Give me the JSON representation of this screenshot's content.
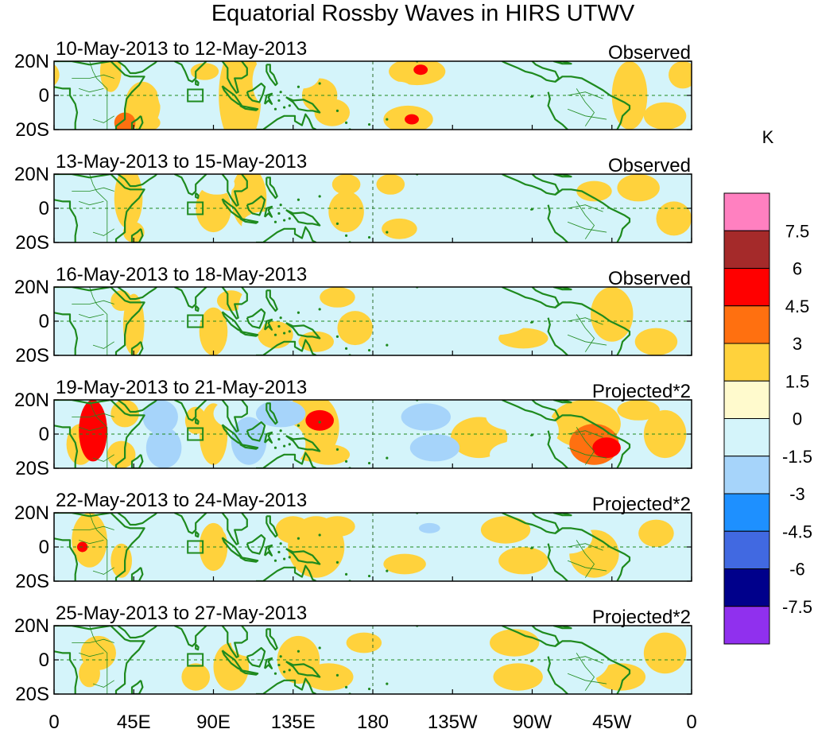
{
  "chart_data": {
    "type": "heatmap",
    "title": "Equatorial Rossby Waves in HIRS UTWV",
    "x_tick_labels": [
      "0",
      "45E",
      "90E",
      "135E",
      "180",
      "135W",
      "90W",
      "45W",
      "0"
    ],
    "y_tick_labels": [
      "20N",
      "0",
      "20S"
    ],
    "xlim_degrees_east": [
      0,
      360
    ],
    "ylim_degrees_lat": [
      -20,
      20
    ],
    "colorbar": {
      "unit": "K",
      "tick_labels": [
        "7.5",
        "6",
        "4.5",
        "3",
        "1.5",
        "0",
        "-1.5",
        "-3",
        "-4.5",
        "-6",
        "-7.5"
      ],
      "colors": [
        "#ff80c0",
        "#a52a2a",
        "#ff0000",
        "#ff7010",
        "#ffd23c",
        "#fffacd",
        "#d4f4fa",
        "#a6d4fa",
        "#1e90ff",
        "#4169e1",
        "#00008b",
        "#9030ee"
      ]
    },
    "panels": [
      {
        "dates": "10-May-2013 to 12-May-2013",
        "label": "Observed",
        "blobs": [
          [
            32,
            14,
            6,
            12,
            1
          ],
          [
            50,
            -6,
            10,
            14,
            1
          ],
          [
            40,
            -16,
            6,
            6,
            2
          ],
          [
            52,
            -16,
            8,
            5,
            1
          ],
          [
            85,
            14,
            8,
            5,
            1
          ],
          [
            68,
            6,
            10,
            20,
            -1
          ],
          [
            66,
            -6,
            6,
            14,
            -1
          ],
          [
            105,
            0,
            12,
            30,
            1
          ],
          [
            120,
            8,
            8,
            14,
            -1
          ],
          [
            140,
            12,
            10,
            8,
            -1
          ],
          [
            150,
            0,
            10,
            10,
            1
          ],
          [
            157,
            -10,
            10,
            8,
            1
          ],
          [
            175,
            10,
            8,
            10,
            -1
          ],
          [
            205,
            14,
            16,
            8,
            1
          ],
          [
            207,
            15,
            4,
            3,
            3
          ],
          [
            200,
            -14,
            14,
            8,
            1
          ],
          [
            202,
            -14,
            4,
            3,
            3
          ],
          [
            195,
            2,
            8,
            6,
            -1
          ],
          [
            220,
            0,
            10,
            8,
            -1
          ],
          [
            255,
            -4,
            20,
            14,
            -1
          ],
          [
            250,
            12,
            14,
            8,
            -1
          ],
          [
            285,
            -10,
            10,
            8,
            -1
          ],
          [
            325,
            0,
            10,
            20,
            1
          ],
          [
            345,
            -12,
            12,
            8,
            1
          ],
          [
            355,
            12,
            8,
            8,
            1
          ]
        ]
      },
      {
        "dates": "13-May-2013 to 15-May-2013",
        "label": "Observed",
        "blobs": [
          [
            42,
            6,
            8,
            18,
            1
          ],
          [
            45,
            -14,
            6,
            6,
            1
          ],
          [
            60,
            0,
            10,
            20,
            -1
          ],
          [
            75,
            -16,
            12,
            4,
            -1
          ],
          [
            92,
            14,
            10,
            6,
            -1
          ],
          [
            90,
            0,
            10,
            14,
            1
          ],
          [
            110,
            6,
            10,
            18,
            1
          ],
          [
            118,
            -10,
            12,
            8,
            -1
          ],
          [
            130,
            10,
            10,
            14,
            -1
          ],
          [
            145,
            -6,
            10,
            10,
            -1
          ],
          [
            165,
            -2,
            10,
            12,
            1
          ],
          [
            165,
            14,
            8,
            6,
            1
          ],
          [
            190,
            14,
            8,
            6,
            1
          ],
          [
            195,
            -12,
            10,
            6,
            1
          ],
          [
            220,
            4,
            10,
            8,
            -1
          ],
          [
            260,
            -8,
            20,
            10,
            -1
          ],
          [
            280,
            8,
            14,
            8,
            -1
          ],
          [
            305,
            10,
            10,
            6,
            1
          ],
          [
            330,
            12,
            12,
            8,
            1
          ],
          [
            350,
            -6,
            10,
            10,
            1
          ]
        ]
      },
      {
        "dates": "16-May-2013 to 18-May-2013",
        "label": "Observed",
        "blobs": [
          [
            38,
            12,
            6,
            6,
            1
          ],
          [
            45,
            -2,
            6,
            18,
            1
          ],
          [
            62,
            6,
            10,
            18,
            -1
          ],
          [
            70,
            -10,
            12,
            8,
            -1
          ],
          [
            90,
            -6,
            8,
            14,
            1
          ],
          [
            100,
            12,
            8,
            6,
            1
          ],
          [
            112,
            6,
            8,
            14,
            -1
          ],
          [
            125,
            -8,
            10,
            8,
            1
          ],
          [
            160,
            14,
            10,
            6,
            1
          ],
          [
            148,
            -12,
            10,
            6,
            1
          ],
          [
            170,
            -4,
            10,
            10,
            1
          ],
          [
            210,
            12,
            10,
            6,
            -1
          ],
          [
            190,
            -12,
            10,
            6,
            -1
          ],
          [
            250,
            4,
            20,
            12,
            -1
          ],
          [
            265,
            -10,
            14,
            6,
            1
          ],
          [
            290,
            14,
            10,
            6,
            -1
          ],
          [
            315,
            4,
            12,
            16,
            1
          ],
          [
            340,
            -12,
            12,
            8,
            1
          ]
        ]
      },
      {
        "dates": "19-May-2013 to 21-May-2013",
        "label": "Projected*2",
        "blobs": [
          [
            22,
            2,
            8,
            18,
            3
          ],
          [
            15,
            -6,
            8,
            12,
            1
          ],
          [
            40,
            12,
            8,
            8,
            1
          ],
          [
            38,
            -12,
            8,
            8,
            1
          ],
          [
            60,
            10,
            10,
            10,
            -2
          ],
          [
            62,
            -8,
            10,
            12,
            -2
          ],
          [
            70,
            0,
            6,
            6,
            -1
          ],
          [
            80,
            8,
            6,
            8,
            1
          ],
          [
            90,
            0,
            8,
            18,
            1
          ],
          [
            100,
            12,
            10,
            8,
            -1
          ],
          [
            110,
            -4,
            10,
            14,
            -2
          ],
          [
            128,
            12,
            14,
            8,
            -2
          ],
          [
            132,
            -6,
            10,
            12,
            -1
          ],
          [
            145,
            4,
            16,
            20,
            1
          ],
          [
            150,
            8,
            8,
            6,
            3
          ],
          [
            155,
            -12,
            12,
            6,
            1
          ],
          [
            210,
            10,
            14,
            8,
            -2
          ],
          [
            215,
            -8,
            14,
            8,
            -2
          ],
          [
            240,
            -2,
            16,
            12,
            1
          ],
          [
            260,
            10,
            16,
            8,
            -1
          ],
          [
            262,
            -12,
            16,
            8,
            -1
          ],
          [
            275,
            2,
            10,
            10,
            -1
          ],
          [
            300,
            6,
            20,
            14,
            1
          ],
          [
            305,
            -6,
            14,
            12,
            2
          ],
          [
            312,
            -8,
            8,
            6,
            3
          ],
          [
            330,
            14,
            12,
            6,
            1
          ],
          [
            345,
            0,
            12,
            14,
            1
          ]
        ]
      },
      {
        "dates": "22-May-2013 to 24-May-2013",
        "label": "Projected*2",
        "blobs": [
          [
            20,
            4,
            10,
            16,
            1
          ],
          [
            16,
            0,
            3,
            3,
            3
          ],
          [
            38,
            -8,
            6,
            10,
            1
          ],
          [
            55,
            6,
            10,
            16,
            -1
          ],
          [
            62,
            -14,
            8,
            6,
            -1
          ],
          [
            90,
            0,
            8,
            14,
            1
          ],
          [
            105,
            12,
            10,
            8,
            -1
          ],
          [
            115,
            -6,
            10,
            12,
            -1
          ],
          [
            135,
            10,
            10,
            8,
            1
          ],
          [
            148,
            0,
            16,
            18,
            1
          ],
          [
            160,
            12,
            10,
            6,
            1
          ],
          [
            198,
            -10,
            12,
            6,
            1
          ],
          [
            210,
            10,
            12,
            6,
            -1
          ],
          [
            212,
            11,
            6,
            3,
            -2
          ],
          [
            230,
            -4,
            16,
            10,
            -1
          ],
          [
            255,
            10,
            14,
            8,
            1
          ],
          [
            265,
            -8,
            14,
            8,
            1
          ],
          [
            290,
            6,
            14,
            10,
            -1
          ],
          [
            305,
            -4,
            14,
            14,
            1
          ],
          [
            340,
            8,
            10,
            8,
            1
          ]
        ]
      },
      {
        "dates": "25-May-2013 to 27-May-2013",
        "label": "Projected*2",
        "blobs": [
          [
            25,
            4,
            10,
            10,
            1
          ],
          [
            20,
            -8,
            6,
            8,
            1
          ],
          [
            50,
            8,
            10,
            12,
            -1
          ],
          [
            58,
            -8,
            10,
            10,
            -1
          ],
          [
            80,
            -10,
            8,
            8,
            1
          ],
          [
            100,
            -4,
            10,
            14,
            1
          ],
          [
            110,
            10,
            10,
            8,
            -1
          ],
          [
            138,
            0,
            12,
            14,
            1
          ],
          [
            155,
            -10,
            14,
            8,
            1
          ],
          [
            175,
            10,
            10,
            6,
            1
          ],
          [
            215,
            8,
            16,
            8,
            -1
          ],
          [
            230,
            -6,
            16,
            10,
            -1
          ],
          [
            260,
            10,
            14,
            8,
            1
          ],
          [
            262,
            -10,
            14,
            8,
            1
          ],
          [
            300,
            2,
            14,
            14,
            -1
          ],
          [
            320,
            -10,
            14,
            8,
            1
          ],
          [
            345,
            4,
            12,
            12,
            1
          ]
        ]
      }
    ],
    "map": {
      "coastline_color": "#1e8a1e",
      "equator_guides": "dashed",
      "date_line_guide": "dashed",
      "box_marker": "near 80E, equator"
    }
  }
}
